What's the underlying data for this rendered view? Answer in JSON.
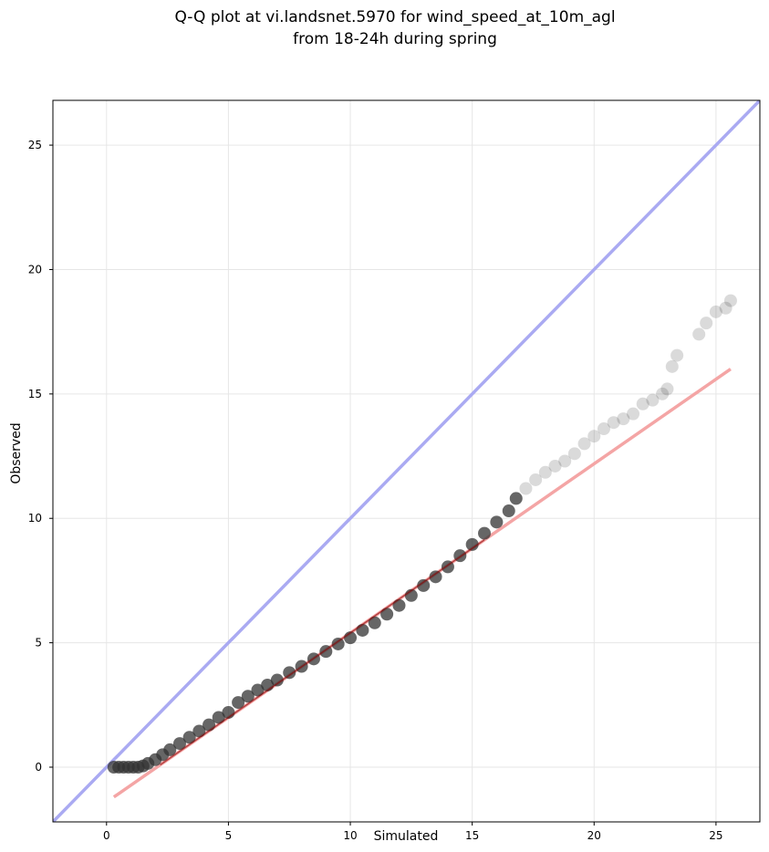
{
  "chart_data": {
    "type": "scatter",
    "title_lines": [
      "Q-Q plot at vi.landsnet.5970 for wind_speed_at_10m_agl",
      "from 18-24h during spring"
    ],
    "xlabel": "Simulated",
    "ylabel": "Observed",
    "xlim": [
      -2.2,
      26.8
    ],
    "ylim": [
      -2.2,
      26.8
    ],
    "xticks": [
      0,
      5,
      10,
      15,
      20,
      25
    ],
    "yticks": [
      0,
      5,
      10,
      15,
      20,
      25
    ],
    "grid": true,
    "colors": {
      "points": "#333333",
      "identity_line": "#aaaaf2",
      "fit_line": "#f4a5a5",
      "fit_line_core": "#8b0000"
    },
    "identity_line": {
      "x": [
        -2.2,
        26.8
      ],
      "y": [
        -2.2,
        26.8
      ]
    },
    "fit_line": {
      "x": [
        0.3,
        25.6
      ],
      "y": [
        -1.2,
        16.0
      ]
    },
    "series": [
      {
        "x": [
          0.3,
          0.5,
          0.7,
          0.9,
          1.1,
          1.3,
          1.5,
          1.7,
          2.0,
          2.3,
          2.6,
          3.0,
          3.4,
          3.8,
          4.2,
          4.6,
          5.0,
          5.4,
          5.8,
          6.2,
          6.6,
          7.0,
          7.5,
          8.0,
          8.5,
          9.0,
          9.5,
          10.0,
          10.5,
          11.0,
          11.5,
          12.0,
          12.5,
          13.0,
          13.5,
          14.0,
          14.5,
          15.0,
          15.5,
          16.0,
          16.5,
          16.8,
          17.2,
          17.6,
          18.0,
          18.4,
          18.8,
          19.2,
          19.6,
          20.0,
          20.4,
          20.8,
          21.2,
          21.6,
          22.0,
          22.4,
          22.8,
          23.0,
          23.2,
          23.4,
          24.3,
          24.6,
          25.0,
          25.4,
          25.6
        ],
        "y": [
          0.0,
          0.0,
          0.0,
          0.0,
          0.0,
          0.0,
          0.05,
          0.15,
          0.3,
          0.5,
          0.7,
          0.95,
          1.2,
          1.45,
          1.7,
          2.0,
          2.2,
          2.6,
          2.85,
          3.1,
          3.3,
          3.5,
          3.8,
          4.05,
          4.35,
          4.65,
          4.95,
          5.2,
          5.5,
          5.8,
          6.15,
          6.5,
          6.9,
          7.3,
          7.65,
          8.05,
          8.5,
          8.95,
          9.4,
          9.85,
          10.3,
          10.8,
          11.2,
          11.55,
          11.85,
          12.1,
          12.3,
          12.6,
          13.0,
          13.3,
          13.6,
          13.85,
          14.0,
          14.2,
          14.6,
          14.75,
          15.0,
          15.2,
          16.1,
          16.55,
          17.4,
          17.85,
          18.3,
          18.45,
          18.75
        ]
      }
    ]
  }
}
